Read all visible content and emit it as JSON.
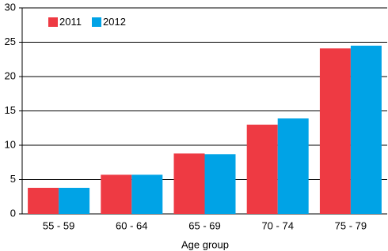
{
  "chart_data": {
    "type": "bar",
    "x_label": "Age group",
    "categories": [
      "55 - 59",
      "60 - 64",
      "65 - 69",
      "70 - 74",
      "75 - 79"
    ],
    "series": [
      {
        "name": "2011",
        "color": "#ee3a43",
        "values": [
          3.8,
          5.7,
          8.8,
          13.0,
          24.1
        ]
      },
      {
        "name": "2012",
        "color": "#00a3e6",
        "values": [
          3.8,
          5.7,
          8.7,
          13.9,
          24.5
        ]
      }
    ],
    "ylim": [
      0,
      30
    ],
    "yticks": [
      0,
      5,
      10,
      15,
      20,
      25,
      30
    ],
    "grid": true,
    "legend": "top-left"
  }
}
